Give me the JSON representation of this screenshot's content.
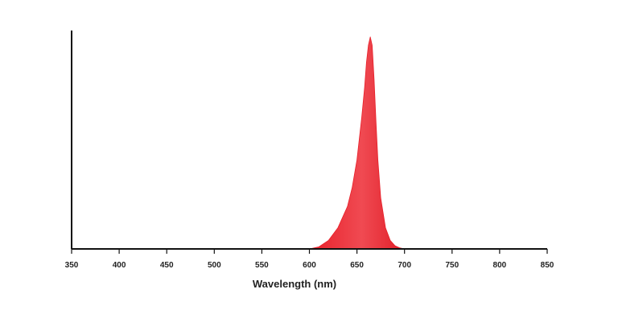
{
  "chart_data": {
    "type": "area",
    "title": "",
    "xlabel": "Wavelength (nm)",
    "ylabel": "",
    "xlim": [
      350,
      850
    ],
    "ylim": [
      0,
      1.03
    ],
    "x_ticks": [
      350,
      400,
      450,
      500,
      550,
      600,
      650,
      700,
      750,
      800,
      850
    ],
    "grid": false,
    "series": [
      {
        "color": "#e8202a",
        "x": [
          600,
          610,
          620,
          630,
          640,
          645,
          650,
          655,
          658,
          660,
          662,
          664,
          666,
          668,
          670,
          672,
          675,
          680,
          685,
          690,
          695,
          700
        ],
        "y": [
          0.0,
          0.01,
          0.04,
          0.1,
          0.2,
          0.29,
          0.42,
          0.62,
          0.76,
          0.88,
          0.96,
          1.0,
          0.96,
          0.8,
          0.6,
          0.42,
          0.24,
          0.1,
          0.04,
          0.015,
          0.005,
          0.0
        ]
      }
    ]
  }
}
